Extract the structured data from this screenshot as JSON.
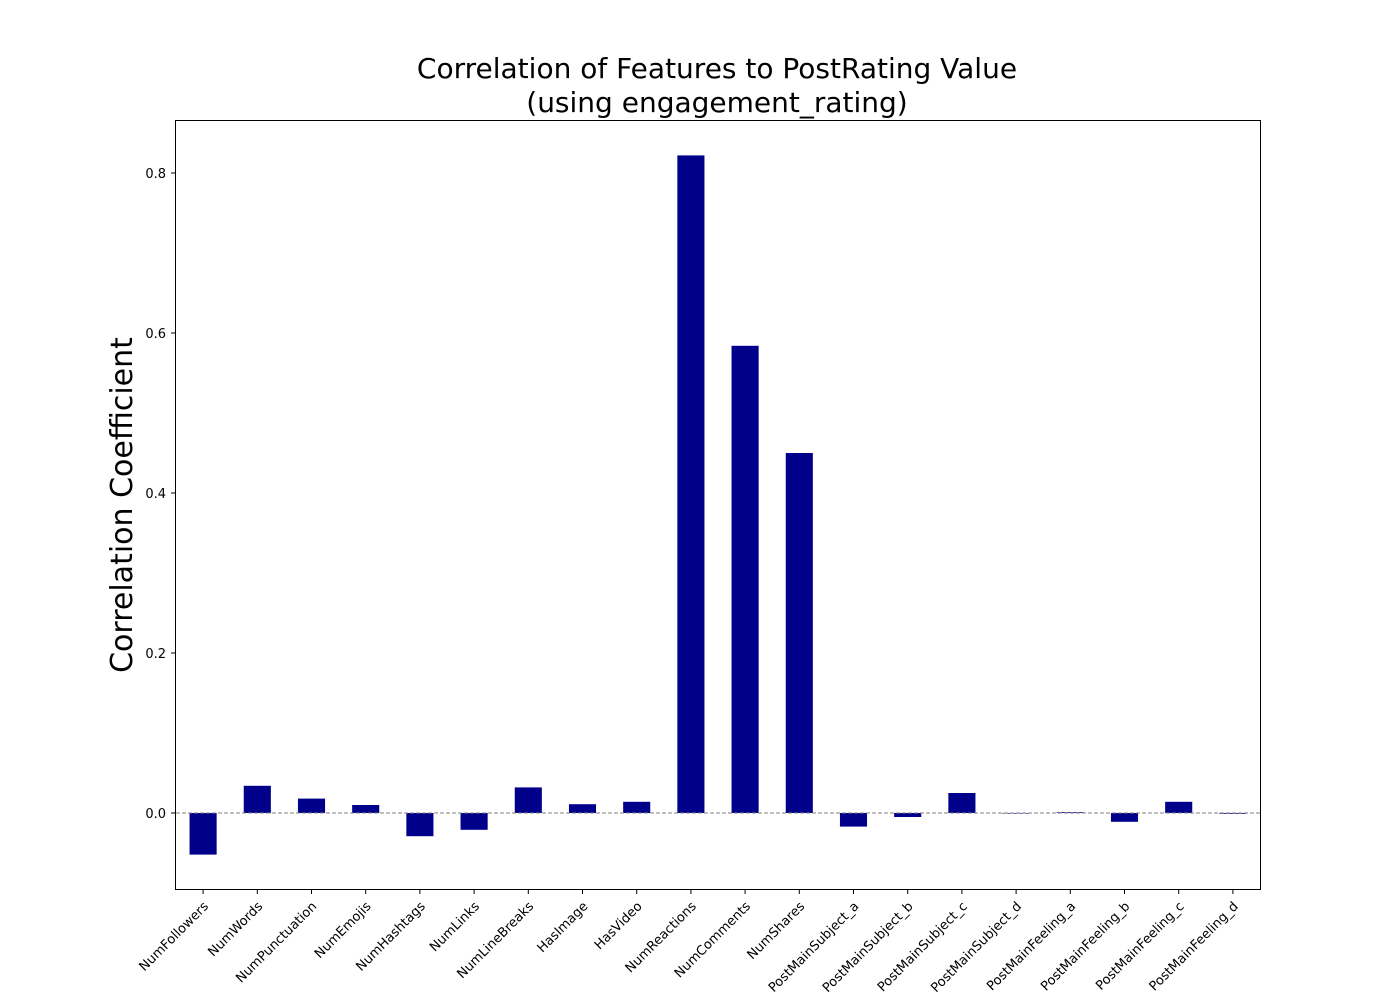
{
  "chart_data": {
    "type": "bar",
    "title": "Correlation of Features to PostRating Value\n(using engagement_rating)",
    "title_lines": [
      "Correlation of Features to PostRating Value",
      "(using engagement_rating)"
    ],
    "xlabel": "",
    "ylabel": "Correlation Coefficient",
    "ylim": [
      -0.095,
      0.865
    ],
    "yticks": [
      0.0,
      0.2,
      0.4,
      0.6,
      0.8
    ],
    "ytick_labels": [
      "0.0",
      "0.2",
      "0.4",
      "0.6",
      "0.8"
    ],
    "bar_color": "#00008b",
    "zero_line": true,
    "grid": false,
    "categories": [
      "NumFollowers",
      "NumWords",
      "NumPunctuation",
      "NumEmojis",
      "NumHashtags",
      "NumLinks",
      "NumLineBreaks",
      "HasImage",
      "HasVideo",
      "NumReactions",
      "NumComments",
      "NumShares",
      "PostMainSubject_a",
      "PostMainSubject_b",
      "PostMainSubject_c",
      "PostMainSubject_d",
      "PostMainFeeling_a",
      "PostMainFeeling_b",
      "PostMainFeeling_c",
      "PostMainFeeling_d"
    ],
    "values": [
      -0.052,
      0.034,
      0.018,
      0.01,
      -0.029,
      -0.021,
      0.032,
      0.011,
      0.014,
      0.822,
      0.584,
      0.45,
      -0.017,
      -0.005,
      0.025,
      0.0,
      0.001,
      -0.011,
      0.014,
      -0.001
    ]
  }
}
